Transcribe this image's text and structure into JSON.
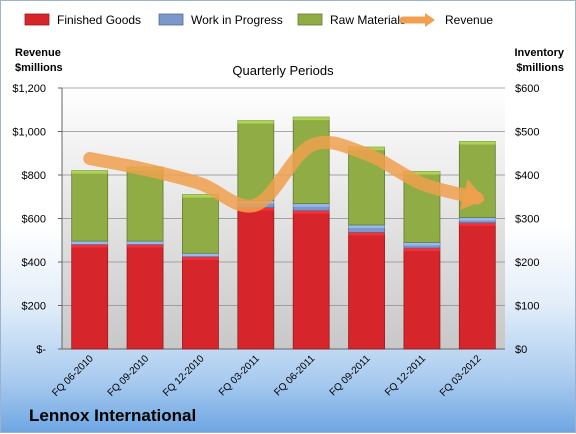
{
  "brand": "Lennox International",
  "chart_data": {
    "type": "bar",
    "stacked": true,
    "title": "Quarterly Periods",
    "categories": [
      "FQ 06-2010",
      "FQ 09-2010",
      "FQ 12-2010",
      "FQ 03-2011",
      "FQ 06-2011",
      "FQ 09-2011",
      "FQ 12-2011",
      "FQ 03-2012"
    ],
    "series": [
      {
        "name": "Finished Goods",
        "axis": "right",
        "color": "#d6262b",
        "values": [
          240,
          240,
          212,
          325,
          318,
          268,
          232,
          290
        ]
      },
      {
        "name": "Work in Progress",
        "axis": "right",
        "color": "#7c97c9",
        "values": [
          8,
          8,
          8,
          16,
          16,
          17,
          13,
          12
        ]
      },
      {
        "name": "Raw Materials",
        "axis": "right",
        "color": "#8fad44",
        "values": [
          162,
          170,
          135,
          184,
          199,
          179,
          163,
          175
        ]
      },
      {
        "name": "Revenue",
        "axis": "left",
        "type": "line",
        "color": "#f0a04e",
        "values": [
          876,
          826,
          760,
          662,
          936,
          896,
          760,
          694
        ]
      }
    ],
    "left_axis": {
      "label_line1": "Revenue",
      "label_line2": "$millions",
      "ticks": [
        "$-",
        "$200",
        "$400",
        "$600",
        "$800",
        "$1,000",
        "$1,200"
      ],
      "ylim": [
        0,
        1200
      ]
    },
    "right_axis": {
      "label_line1": "Inventory",
      "label_line2": "$millions",
      "ticks": [
        "$0",
        "$100",
        "$200",
        "$300",
        "$400",
        "$500",
        "$600"
      ],
      "ylim": [
        0,
        600
      ]
    },
    "legend_position": "top",
    "plot_background": "#c9c9c9"
  }
}
